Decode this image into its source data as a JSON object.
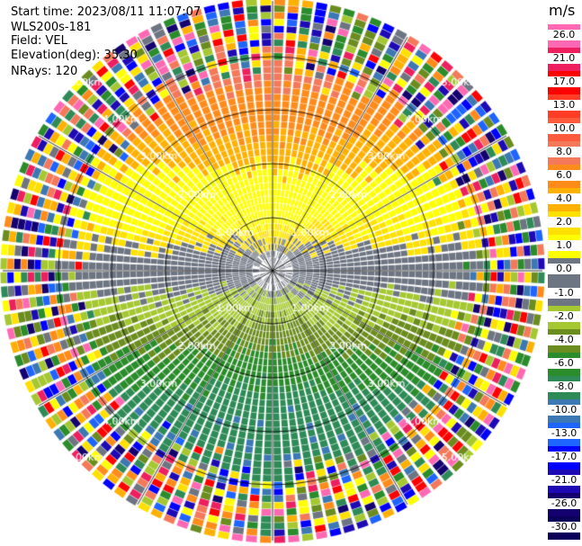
{
  "header": {
    "start_time": "Start time: 2023/08/11 11:07:07",
    "instrument": "WLS200s-181",
    "field": "Field: VEL",
    "elevation": "Elevation(deg): 35.30",
    "nrays": "NRays: 120"
  },
  "colorbar": {
    "unit": "m/s",
    "ticks": [
      "26.0",
      "21.0",
      "17.0",
      "13.0",
      "10.0",
      "8.0",
      "6.0",
      "4.0",
      "2.0",
      "1.0",
      "0.0",
      "-1.0",
      "-2.0",
      "-4.0",
      "-6.0",
      "-8.0",
      "-10.0",
      "-13.0",
      "-17.0",
      "-21.0",
      "-26.0",
      "-30.0"
    ],
    "colors": [
      "#ff69b4",
      "#ee1f5f",
      "#ff0000",
      "#ff3c26",
      "#ff5a3c",
      "#f4795a",
      "#ff8c1a",
      "#ffb000",
      "#ffe000",
      "#ffff00",
      "#6e7582",
      "#6e7582",
      "#a5c832",
      "#6b8c1e",
      "#2b8c2b",
      "#2e8b57",
      "#3c78b4",
      "#1e64ff",
      "#0000ff",
      "#1e0ab4",
      "#14006e",
      "#0a005a"
    ]
  },
  "range_labels": [
    "1.00km",
    "2.00km",
    "3.00km",
    "4.00km",
    "5.00km"
  ]
}
